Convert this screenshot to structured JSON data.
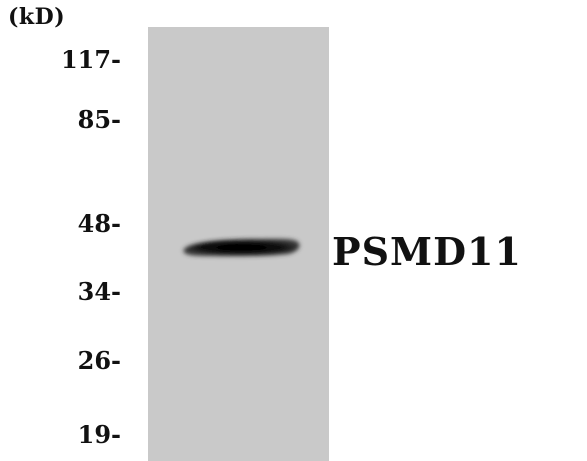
{
  "blot": {
    "unit_label": "(kD)",
    "markers": [
      "117-",
      "85-",
      "48-",
      "34-",
      "26-",
      "19-"
    ],
    "protein_label": "PSMD11",
    "colors": {
      "lane_background": "#c9c9c9",
      "band": "#0a0a0a",
      "text": "#111111"
    }
  }
}
